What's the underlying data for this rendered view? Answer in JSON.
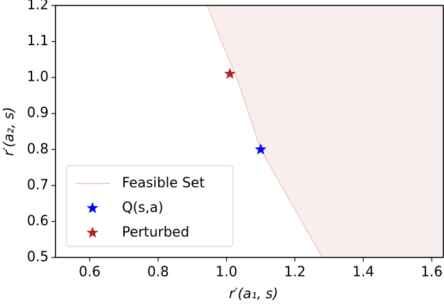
{
  "chart_data": {
    "type": "scatter",
    "x_label": "r′(a₁, s)",
    "y_label": "r′(a₂, s)",
    "xlim": [
      0.5,
      1.636
    ],
    "ylim": [
      0.5,
      1.2
    ],
    "xticks": [
      0.6,
      0.8,
      {
        "value": 1,
        "label": "1.0"
      },
      1.2,
      1.4,
      1.6
    ],
    "yticks": [
      0.5,
      0.6,
      0.7,
      0.8,
      0.9,
      {
        "value": 1,
        "label": "1.0"
      },
      1.1,
      1.2
    ],
    "legend": "lower left",
    "series": [
      {
        "name": "Feasible Set",
        "kind": "region",
        "color": "#f2d3d3",
        "fill": "#f9eeee",
        "x": [
          0.944,
          0.985,
          1.03,
          1.065,
          1.1,
          1.16,
          1.22,
          1.28
        ],
        "values": [
          1.2,
          1.1,
          1.0,
          0.9,
          0.8,
          0.7,
          0.6,
          0.5
        ]
      },
      {
        "name": "Q(s,a)",
        "kind": "star",
        "color": "#0000ff",
        "x": [
          1.1
        ],
        "values": [
          0.8
        ]
      },
      {
        "name": "Perturbed",
        "kind": "star",
        "color": "#b22222",
        "x": [
          1.01
        ],
        "values": [
          1.01
        ]
      }
    ]
  }
}
